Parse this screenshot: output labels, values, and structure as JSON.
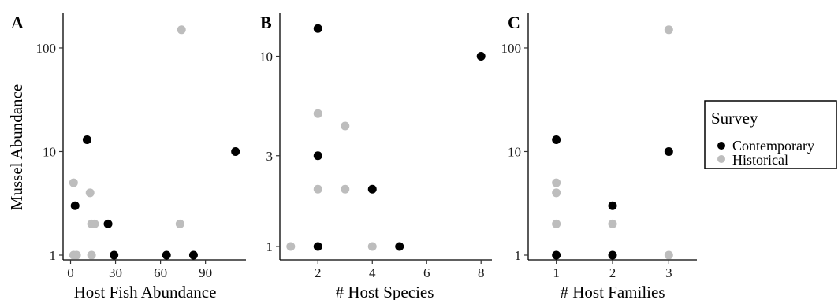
{
  "colors": {
    "contemporary": "#000000",
    "historical": "#bdbdbd",
    "axis": "#000000"
  },
  "legend": {
    "title": "Survey",
    "items": [
      {
        "label": "Contemporary",
        "key": "contemporary"
      },
      {
        "label": "Historical",
        "key": "historical"
      }
    ]
  },
  "chart_data": [
    {
      "type": "scatter",
      "panel": "A",
      "xlabel": "Host Fish Abundance",
      "ylabel": "Mussel Abundance",
      "xlim": [
        -5,
        117
      ],
      "ylim": [
        1,
        175
      ],
      "yscale": "log",
      "xticks": [
        0,
        30,
        60,
        90
      ],
      "yticks": [
        1,
        10,
        100
      ],
      "series": [
        {
          "name": "Contemporary",
          "key": "contemporary",
          "points": [
            [
              3,
              3
            ],
            [
              11,
              13
            ],
            [
              25,
              2
            ],
            [
              29,
              1
            ],
            [
              64,
              1
            ],
            [
              82,
              1
            ],
            [
              110,
              10
            ]
          ]
        },
        {
          "name": "Historical",
          "key": "historical",
          "points": [
            [
              2,
              5
            ],
            [
              2,
              1
            ],
            [
              4,
              1
            ],
            [
              13,
              4
            ],
            [
              14,
              2
            ],
            [
              16,
              2
            ],
            [
              14,
              1
            ],
            [
              74,
              150
            ],
            [
              73,
              2
            ]
          ]
        }
      ]
    },
    {
      "type": "scatter",
      "panel": "B",
      "xlabel": "# Host Species",
      "ylabel": "",
      "xlim": [
        0.6,
        8.4
      ],
      "ylim": [
        0.9,
        15
      ],
      "yscale": "log",
      "xticks": [
        2,
        4,
        6,
        8
      ],
      "yticks": [
        1,
        3,
        10
      ],
      "series": [
        {
          "name": "Contemporary",
          "key": "contemporary",
          "points": [
            [
              2,
              14
            ],
            [
              2,
              3
            ],
            [
              2,
              1
            ],
            [
              4,
              2
            ],
            [
              5,
              1
            ],
            [
              8,
              10
            ]
          ]
        },
        {
          "name": "Historical",
          "key": "historical",
          "points": [
            [
              1,
              1
            ],
            [
              2,
              5
            ],
            [
              2,
              2
            ],
            [
              3,
              4.3
            ],
            [
              3,
              2
            ],
            [
              4,
              1
            ]
          ]
        }
      ]
    },
    {
      "type": "scatter",
      "panel": "C",
      "xlabel": "# Host Families",
      "ylabel": "",
      "xlim": [
        0.5,
        3.5
      ],
      "ylim": [
        1,
        175
      ],
      "yscale": "log",
      "xticks": [
        1,
        2,
        3
      ],
      "yticks": [
        1,
        10,
        100
      ],
      "series": [
        {
          "name": "Contemporary",
          "key": "contemporary",
          "points": [
            [
              1,
              13
            ],
            [
              1,
              1
            ],
            [
              2,
              3
            ],
            [
              2,
              1
            ],
            [
              3,
              10
            ]
          ]
        },
        {
          "name": "Historical",
          "key": "historical",
          "points": [
            [
              1,
              5
            ],
            [
              1,
              4
            ],
            [
              1,
              2
            ],
            [
              2,
              2
            ],
            [
              3,
              150
            ],
            [
              3,
              1
            ]
          ]
        }
      ]
    }
  ]
}
